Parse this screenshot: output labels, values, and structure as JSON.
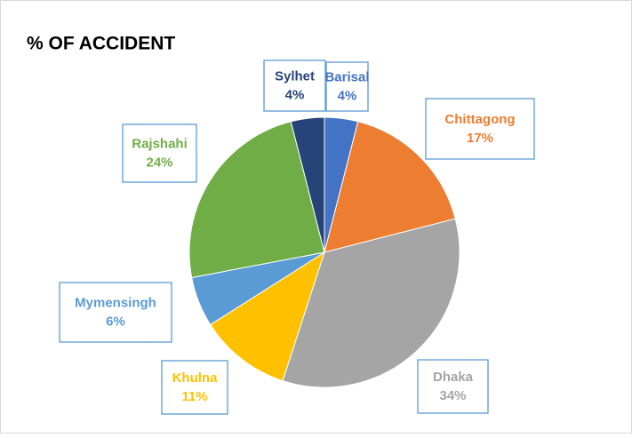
{
  "chart_data": {
    "type": "pie",
    "title": "% OF ACCIDENT",
    "categories": [
      "Barisal",
      "Chittagong",
      "Dhaka",
      "Khulna",
      "Mymensingh",
      "Rajshahi",
      "Sylhet"
    ],
    "values": [
      4,
      17,
      34,
      11,
      6,
      24,
      4
    ],
    "value_labels": [
      "4%",
      "17%",
      "34%",
      "11%",
      "6%",
      "24%",
      "4%"
    ],
    "colors": [
      "#4472c4",
      "#ed7d31",
      "#a5a5a5",
      "#ffc000",
      "#5b9bd5",
      "#70ad47",
      "#264478"
    ]
  }
}
